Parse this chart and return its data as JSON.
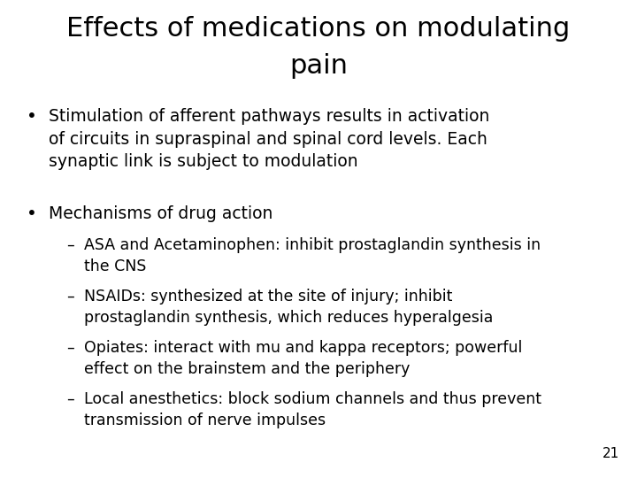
{
  "title_line1": "Effects of medications on modulating",
  "title_line2": "pain",
  "title_fontsize": 22,
  "background_color": "#ffffff",
  "text_color": "#000000",
  "page_number": "21",
  "bullet1": "Stimulation of afferent pathways results in activation\nof circuits in supraspinal and spinal cord levels. Each\nsynaptic link is subject to modulation",
  "bullet2": "Mechanisms of drug action",
  "sub_bullet1": "ASA and Acetaminophen: inhibit prostaglandin synthesis in\nthe CNS",
  "sub_bullet2": "NSAIDs: synthesized at the site of injury; inhibit\nprostaglandin synthesis, which reduces hyperalgesia",
  "sub_bullet3": "Opiates: interact with mu and kappa receptors; powerful\neffect on the brainstem and the periphery",
  "sub_bullet4": "Local anesthetics: block sodium channels and thus prevent\ntransmission of nerve impulses",
  "body_fontsize": 13.5,
  "sub_fontsize": 12.5,
  "page_fontsize": 11
}
